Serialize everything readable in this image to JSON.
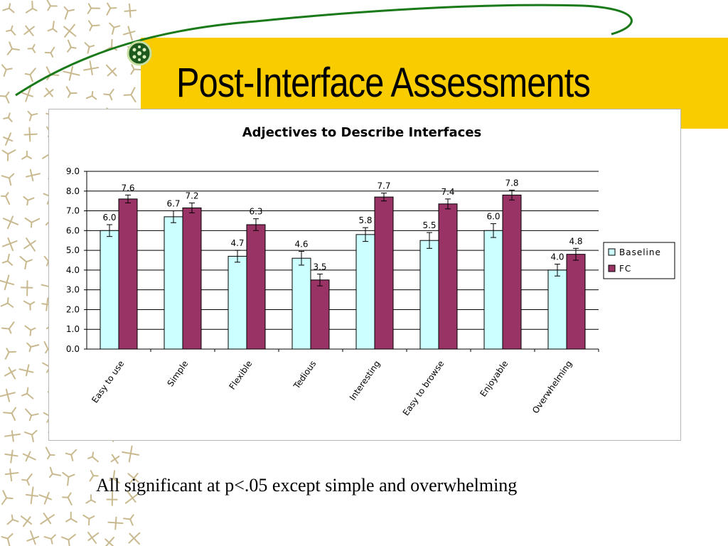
{
  "slide": {
    "title": "Post-Interface Assessments",
    "footnote": "All significant at p<.05 except simple and overwhelming"
  },
  "colors": {
    "banner": "#f9cc00",
    "swoosh": "#1a7a1a",
    "baseline": "#ccffff",
    "fc": "#993366",
    "pattern": "#c9b98f"
  },
  "chart_data": {
    "type": "bar",
    "title": "Adjectives to Describe Interfaces",
    "xlabel": "",
    "ylabel": "",
    "ylim": [
      0,
      9
    ],
    "yticks": [
      "0.0",
      "1.0",
      "2.0",
      "3.0",
      "4.0",
      "5.0",
      "6.0",
      "7.0",
      "8.0",
      "9.0"
    ],
    "grid": true,
    "legend_position": "right",
    "categories": [
      "Easy to use",
      "Simple",
      "Flexible",
      "Tedious",
      "Interesting",
      "Easy to browse",
      "Enjoyable",
      "Overwhelming"
    ],
    "series": [
      {
        "name": "Baseline",
        "values": [
          6.0,
          6.7,
          4.7,
          4.6,
          5.8,
          5.5,
          6.0,
          4.0
        ],
        "labels": [
          "6.0",
          "6.7",
          "4.7",
          "4.6",
          "5.8",
          "5.5",
          "6.0",
          "4.0"
        ],
        "error": [
          0.3,
          0.3,
          0.3,
          0.35,
          0.35,
          0.4,
          0.35,
          0.3
        ]
      },
      {
        "name": "FC",
        "values": [
          7.6,
          7.15,
          6.3,
          3.5,
          7.7,
          7.35,
          7.8,
          4.8
        ],
        "labels": [
          "7.6",
          "7.2",
          "6.3",
          "3.5",
          "7.7",
          "7.4",
          "7.8",
          "4.8"
        ],
        "error": [
          0.2,
          0.25,
          0.3,
          0.3,
          0.2,
          0.25,
          0.25,
          0.3
        ]
      }
    ]
  }
}
